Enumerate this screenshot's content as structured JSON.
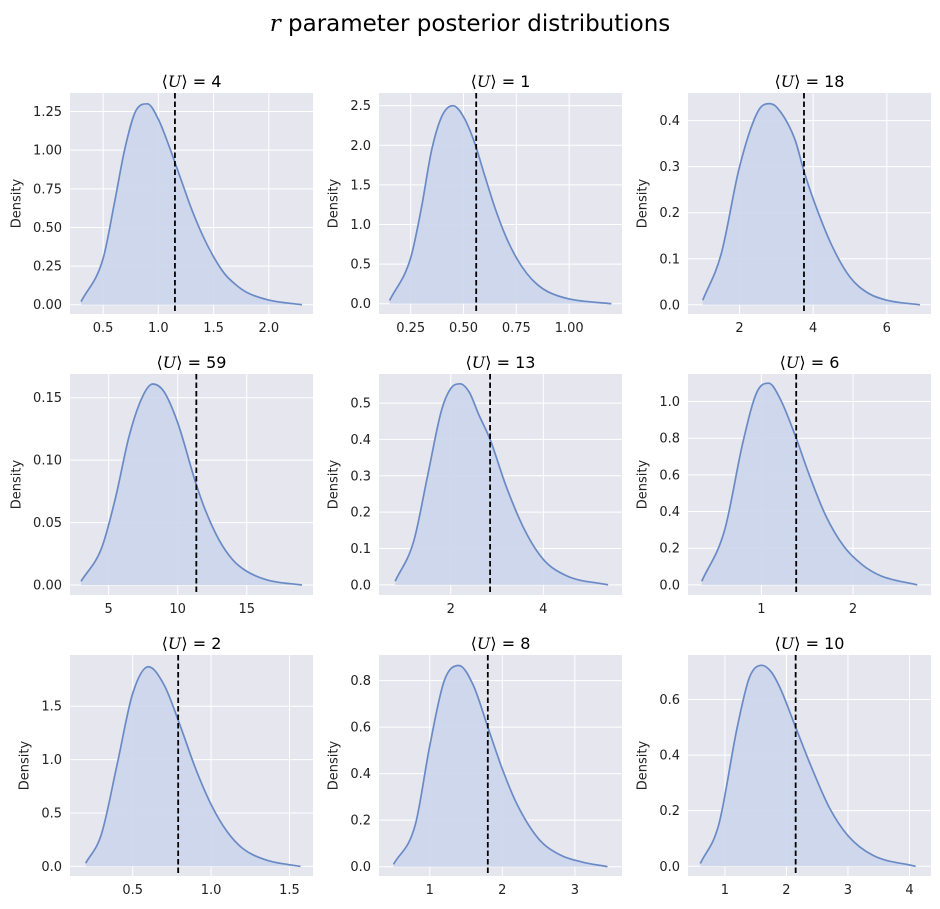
{
  "figure": {
    "title_italic": "r",
    "title_rest": " parameter posterior distributions"
  },
  "colors": {
    "background": "#e6e6ef",
    "grid": "#ffffff",
    "line": "#6a8ac6",
    "fill": "#c9d3ea",
    "vline": "#000000"
  },
  "chart_data": [
    {
      "type": "area",
      "title_math": "⟨U⟩ = 4",
      "title_value": "4",
      "ylabel": "Density",
      "xlim": [
        0.2,
        2.4
      ],
      "ylim": [
        -0.06,
        1.37
      ],
      "xticks": [
        0.5,
        1.0,
        1.5,
        2.0
      ],
      "xtick_labels": [
        "0.5",
        "1.0",
        "1.5",
        "2.0"
      ],
      "yticks": [
        0,
        0.25,
        0.5,
        0.75,
        1.0,
        1.25
      ],
      "ytick_labels": [
        "0.00",
        "0.25",
        "0.50",
        "0.75",
        "1.00",
        "1.25"
      ],
      "series": [
        {
          "x": [
            0.3,
            0.5,
            0.6,
            0.7,
            0.8,
            0.9,
            1.0,
            1.1,
            1.2,
            1.3,
            1.4,
            1.5,
            1.6,
            1.7,
            1.8,
            2.0,
            2.3
          ],
          "y": [
            0.02,
            0.3,
            0.65,
            1.02,
            1.26,
            1.3,
            1.2,
            1.02,
            0.82,
            0.62,
            0.45,
            0.31,
            0.2,
            0.13,
            0.08,
            0.03,
            0.0
          ]
        }
      ],
      "vline": 1.15
    },
    {
      "type": "area",
      "title_math": "⟨U⟩ = 1",
      "title_value": "1",
      "ylabel": "Density",
      "xlim": [
        0.1,
        1.25
      ],
      "ylim": [
        -0.13,
        2.66
      ],
      "xticks": [
        0.25,
        0.5,
        0.75,
        1.0
      ],
      "xtick_labels": [
        "0.25",
        "0.50",
        "0.75",
        "1.00"
      ],
      "yticks": [
        0,
        0.5,
        1.0,
        1.5,
        2.0,
        2.5
      ],
      "ytick_labels": [
        "0.0",
        "0.5",
        "1.0",
        "1.5",
        "2.0",
        "2.5"
      ],
      "series": [
        {
          "x": [
            0.15,
            0.25,
            0.3,
            0.35,
            0.4,
            0.45,
            0.5,
            0.55,
            0.6,
            0.65,
            0.7,
            0.75,
            0.8,
            0.85,
            0.9,
            1.0,
            1.2
          ],
          "y": [
            0.04,
            0.58,
            1.2,
            1.95,
            2.38,
            2.5,
            2.36,
            2.05,
            1.62,
            1.2,
            0.85,
            0.58,
            0.38,
            0.24,
            0.15,
            0.06,
            0.0
          ]
        }
      ],
      "vline": 0.56
    },
    {
      "type": "area",
      "title_math": "⟨U⟩ = 18",
      "title_value": "18",
      "ylabel": "Density",
      "xlim": [
        0.6,
        7.2
      ],
      "ylim": [
        -0.02,
        0.46
      ],
      "xticks": [
        2,
        4,
        6
      ],
      "xtick_labels": [
        "2",
        "4",
        "6"
      ],
      "yticks": [
        0,
        0.1,
        0.2,
        0.3,
        0.4
      ],
      "ytick_labels": [
        "0.0",
        "0.1",
        "0.2",
        "0.3",
        "0.4"
      ],
      "series": [
        {
          "x": [
            1.0,
            1.5,
            2.0,
            2.5,
            2.8,
            3.0,
            3.5,
            3.75,
            4.0,
            4.5,
            5.0,
            5.5,
            6.0,
            6.9
          ],
          "y": [
            0.01,
            0.11,
            0.3,
            0.42,
            0.437,
            0.43,
            0.36,
            0.29,
            0.23,
            0.13,
            0.06,
            0.025,
            0.01,
            0.0
          ]
        }
      ],
      "vline": 3.75
    },
    {
      "type": "area",
      "title_math": "⟨U⟩ = 59",
      "title_value": "59",
      "ylabel": "Density",
      "xlim": [
        2.2,
        19.8
      ],
      "ylim": [
        -0.008,
        0.169
      ],
      "xticks": [
        5,
        10,
        15
      ],
      "xtick_labels": [
        "5",
        "10",
        "15"
      ],
      "yticks": [
        0,
        0.05,
        0.1,
        0.15
      ],
      "ytick_labels": [
        "0.00",
        "0.05",
        "0.10",
        "0.15"
      ],
      "series": [
        {
          "x": [
            3.0,
            4.5,
            5.5,
            6.5,
            7.5,
            8.2,
            9.0,
            10.0,
            11.3,
            12.0,
            13.0,
            14.0,
            15.0,
            16.5,
            19.0
          ],
          "y": [
            0.003,
            0.03,
            0.07,
            0.12,
            0.152,
            0.161,
            0.155,
            0.13,
            0.082,
            0.06,
            0.036,
            0.02,
            0.011,
            0.004,
            0.0
          ]
        }
      ],
      "vline": 11.35
    },
    {
      "type": "area",
      "title_math": "⟨U⟩ = 13",
      "title_value": "13",
      "ylabel": "Density",
      "xlim": [
        0.45,
        5.7
      ],
      "ylim": [
        -0.028,
        0.58
      ],
      "xticks": [
        2,
        4
      ],
      "xtick_labels": [
        "2",
        "4"
      ],
      "yticks": [
        0,
        0.1,
        0.2,
        0.3,
        0.4,
        0.5
      ],
      "ytick_labels": [
        "0.0",
        "0.1",
        "0.2",
        "0.3",
        "0.4",
        "0.5"
      ],
      "series": [
        {
          "x": [
            0.8,
            1.2,
            1.5,
            1.8,
            2.0,
            2.2,
            2.4,
            2.6,
            2.85,
            3.2,
            3.6,
            4.0,
            4.5,
            5.4
          ],
          "y": [
            0.01,
            0.12,
            0.3,
            0.48,
            0.54,
            0.553,
            0.53,
            0.47,
            0.4,
            0.27,
            0.15,
            0.07,
            0.025,
            0.0
          ]
        }
      ],
      "vline": 2.85
    },
    {
      "type": "area",
      "title_math": "⟨U⟩ = 6",
      "title_value": "6",
      "ylabel": "Density",
      "xlim": [
        0.2,
        2.85
      ],
      "ylim": [
        -0.055,
        1.15
      ],
      "xticks": [
        1,
        2
      ],
      "xtick_labels": [
        "1",
        "2"
      ],
      "yticks": [
        0,
        0.2,
        0.4,
        0.6,
        0.8,
        1.0
      ],
      "ytick_labels": [
        "0.0",
        "0.2",
        "0.4",
        "0.6",
        "0.8",
        "1.0"
      ],
      "series": [
        {
          "x": [
            0.35,
            0.6,
            0.8,
            0.95,
            1.08,
            1.2,
            1.38,
            1.5,
            1.7,
            1.9,
            2.1,
            2.3,
            2.7
          ],
          "y": [
            0.02,
            0.3,
            0.78,
            1.05,
            1.1,
            1.02,
            0.8,
            0.63,
            0.38,
            0.21,
            0.11,
            0.05,
            0.0
          ]
        }
      ],
      "vline": 1.38
    },
    {
      "type": "area",
      "title_math": "⟨U⟩ = 2",
      "title_value": "2",
      "ylabel": "Density",
      "xlim": [
        0.1,
        1.65
      ],
      "ylim": [
        -0.09,
        1.98
      ],
      "xticks": [
        0.5,
        1.0,
        1.5
      ],
      "xtick_labels": [
        "0.5",
        "1.0",
        "1.5"
      ],
      "yticks": [
        0,
        0.5,
        1.0,
        1.5
      ],
      "ytick_labels": [
        "0.0",
        "0.5",
        "1.0",
        "1.5"
      ],
      "series": [
        {
          "x": [
            0.2,
            0.3,
            0.4,
            0.5,
            0.6,
            0.7,
            0.8,
            0.9,
            1.0,
            1.1,
            1.2,
            1.35,
            1.57
          ],
          "y": [
            0.03,
            0.3,
            0.95,
            1.62,
            1.87,
            1.7,
            1.33,
            0.92,
            0.58,
            0.33,
            0.17,
            0.06,
            0.0
          ]
        }
      ],
      "vline": 0.79
    },
    {
      "type": "area",
      "title_math": "⟨U⟩ = 8",
      "title_value": "8",
      "ylabel": "Density",
      "xlim": [
        0.3,
        3.65
      ],
      "ylim": [
        -0.04,
        0.91
      ],
      "xticks": [
        1,
        2,
        3
      ],
      "xtick_labels": [
        "1",
        "2",
        "3"
      ],
      "yticks": [
        0,
        0.2,
        0.4,
        0.6,
        0.8
      ],
      "ytick_labels": [
        "0.0",
        "0.2",
        "0.4",
        "0.6",
        "0.8"
      ],
      "series": [
        {
          "x": [
            0.5,
            0.8,
            1.0,
            1.2,
            1.4,
            1.6,
            1.8,
            2.0,
            2.2,
            2.5,
            2.8,
            3.1,
            3.45
          ],
          "y": [
            0.01,
            0.18,
            0.52,
            0.8,
            0.865,
            0.78,
            0.6,
            0.42,
            0.27,
            0.12,
            0.05,
            0.02,
            0.0
          ]
        }
      ],
      "vline": 1.8
    },
    {
      "type": "area",
      "title_math": "⟨U⟩ = 10",
      "title_value": "10",
      "ylabel": "Density",
      "xlim": [
        0.4,
        4.35
      ],
      "ylim": [
        -0.035,
        0.76
      ],
      "xticks": [
        1,
        2,
        3,
        4
      ],
      "xtick_labels": [
        "1",
        "2",
        "3",
        "4"
      ],
      "yticks": [
        0,
        0.2,
        0.4,
        0.6
      ],
      "ytick_labels": [
        "0.0",
        "0.2",
        "0.4",
        "0.6"
      ],
      "series": [
        {
          "x": [
            0.6,
            0.9,
            1.2,
            1.4,
            1.6,
            1.75,
            1.9,
            2.15,
            2.4,
            2.7,
            3.0,
            3.4,
            4.1
          ],
          "y": [
            0.01,
            0.15,
            0.5,
            0.68,
            0.723,
            0.7,
            0.64,
            0.5,
            0.36,
            0.21,
            0.11,
            0.04,
            0.0
          ]
        }
      ],
      "vline": 2.15
    }
  ]
}
